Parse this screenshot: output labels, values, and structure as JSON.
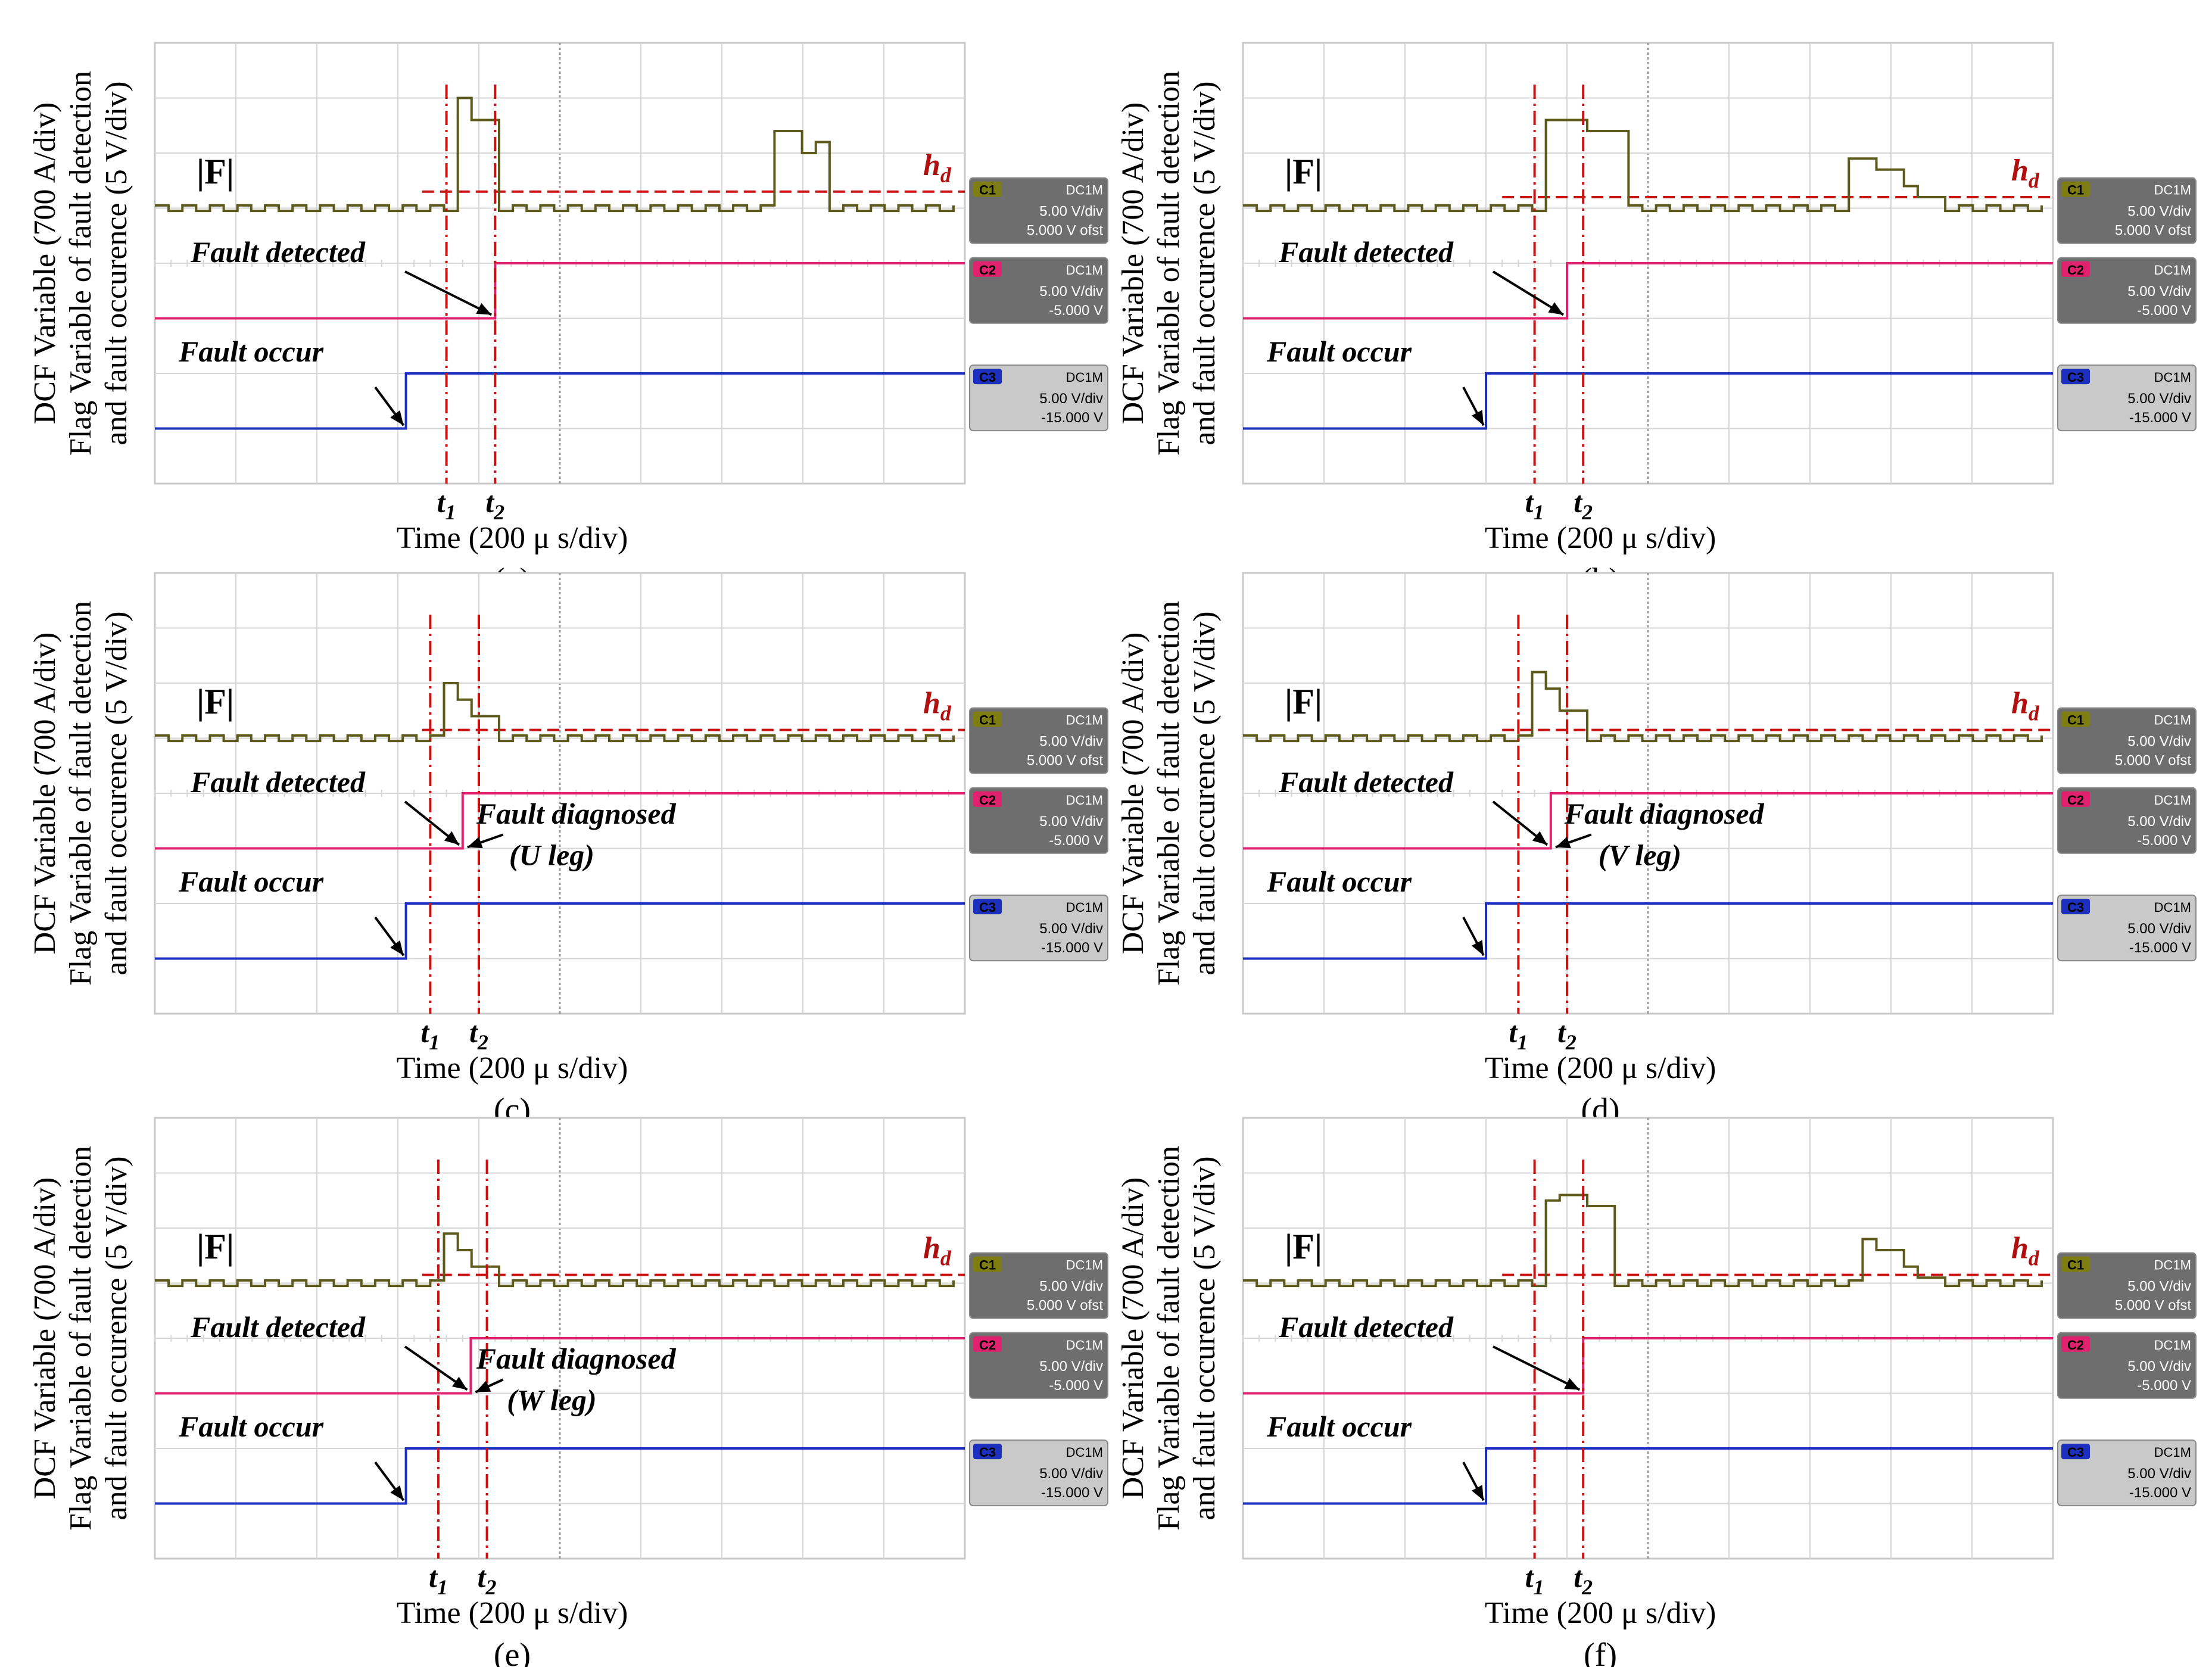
{
  "colors": {
    "background": "#ffffff",
    "plot_bg": "#ffffff",
    "plot_border": "#c8c8c8",
    "grid": "#d6d6d6",
    "grid_center": "#9a9a9a",
    "trace_f": "#5e5a1c",
    "trace_detect": "#e0226e",
    "trace_occur": "#1d2fbe",
    "threshold": "#cc1111",
    "marker": "#cc1111",
    "annotation_red": "#b01010",
    "text": "#000000",
    "badge_c1_tag": "#7d7d12",
    "badge_c2_tag": "#e0226e",
    "badge_c3_tag": "#1d2fbe",
    "badge_dark": "#6e6e6e",
    "badge_light": "#c9c9c9"
  },
  "shared_labels": {
    "ylabel_line1": "DCF Variable (700 A/div)",
    "ylabel_line2": "Flag Variable of fault detection",
    "ylabel_line3": "and fault occurence (5 V/div)",
    "xlabel": "Time (200 μ s/div)",
    "f_label": "|F|",
    "threshold_label_h": "h",
    "threshold_label_d": "d",
    "t1_main": "t",
    "t1_sub": "1",
    "t2_main": "t",
    "t2_sub": "2",
    "fault_detected": "Fault detected",
    "fault_occur": "Fault occur"
  },
  "channel_badges": [
    {
      "tag": "C1",
      "coupling": "DC1M",
      "scale": "5.00 V/div",
      "offset": "5.000 V ofst",
      "style": "dark"
    },
    {
      "tag": "C2",
      "coupling": "DC1M",
      "scale": "5.00 V/div",
      "offset": "-5.000 V",
      "style": "dark"
    },
    {
      "tag": "C3",
      "coupling": "DC1M",
      "scale": "5.00 V/div",
      "offset": "-15.000 V",
      "style": "light"
    }
  ],
  "chart_data": [
    {
      "type": "line",
      "panel": "(a)",
      "x_axis": {
        "label": "Time (200 μ s/div)",
        "divisions": 10,
        "unit": "div"
      },
      "y_axis": {
        "divisions": 8,
        "unit": "div"
      },
      "fault_occur_x": 3.1,
      "t1": 3.6,
      "t2": 4.2,
      "threshold_y": 5.3,
      "series": [
        {
          "name": "|F|",
          "baseline_y": 5.0,
          "pulses": [
            {
              "x0": 3.6,
              "x1": 4.2,
              "levels": [
                7.0,
                6.6
              ]
            },
            {
              "x0": 7.6,
              "x1": 8.3,
              "levels": [
                6.4,
                6.0,
                6.2
              ]
            }
          ]
        },
        {
          "name": "Fault detected flag",
          "low_y": 3.0,
          "high_y": 4.0,
          "step_x": 4.2
        },
        {
          "name": "Fault occurrence flag",
          "low_y": 1.0,
          "high_y": 2.0,
          "step_x": 3.1
        }
      ],
      "annotations": [
        "Fault detected",
        "Fault occur"
      ],
      "caption": "(a)"
    },
    {
      "type": "line",
      "panel": "(b)",
      "x_axis": {
        "label": "Time (200 μ s/div)",
        "divisions": 10,
        "unit": "div"
      },
      "y_axis": {
        "divisions": 8,
        "unit": "div"
      },
      "fault_occur_x": 3.0,
      "t1": 3.6,
      "t2": 4.2,
      "threshold_y": 5.2,
      "series": [
        {
          "name": "|F|",
          "baseline_y": 5.0,
          "pulses": [
            {
              "x0": 3.6,
              "x1": 4.6,
              "levels": [
                6.6,
                6.4
              ]
            },
            {
              "x0": 7.4,
              "x1": 8.6,
              "levels": [
                5.9,
                5.7,
                5.4,
                5.2
              ]
            }
          ]
        },
        {
          "name": "Fault detected flag",
          "low_y": 3.0,
          "high_y": 4.0,
          "step_x": 4.0
        },
        {
          "name": "Fault occurrence flag",
          "low_y": 1.0,
          "high_y": 2.0,
          "step_x": 3.0
        }
      ],
      "annotations": [
        "Fault detected",
        "Fault occur"
      ],
      "caption": "(b)"
    },
    {
      "type": "line",
      "panel": "(c)",
      "x_axis": {
        "label": "Time (200 μ s/div)",
        "divisions": 10,
        "unit": "div"
      },
      "y_axis": {
        "divisions": 8,
        "unit": "div"
      },
      "fault_occur_x": 3.1,
      "t1": 3.4,
      "t2": 4.0,
      "threshold_y": 5.15,
      "series": [
        {
          "name": "|F|",
          "baseline_y": 5.0,
          "pulses": [
            {
              "x0": 3.45,
              "x1": 4.1,
              "levels": [
                6.0,
                5.7,
                5.4
              ]
            }
          ]
        },
        {
          "name": "Fault detected flag",
          "low_y": 3.0,
          "high_y": 4.0,
          "step_x": 3.8
        },
        {
          "name": "Fault occurrence flag",
          "low_y": 1.0,
          "high_y": 2.0,
          "step_x": 3.1
        }
      ],
      "annotations": [
        "Fault detected",
        "Fault diagnosed",
        "(U leg)",
        "Fault occur"
      ],
      "caption": "(c)"
    },
    {
      "type": "line",
      "panel": "(d)",
      "x_axis": {
        "label": "Time (200 μ s/div)",
        "divisions": 10,
        "unit": "div"
      },
      "y_axis": {
        "divisions": 8,
        "unit": "div"
      },
      "fault_occur_x": 3.0,
      "t1": 3.4,
      "t2": 4.0,
      "threshold_y": 5.15,
      "series": [
        {
          "name": "|F|",
          "baseline_y": 5.0,
          "pulses": [
            {
              "x0": 3.45,
              "x1": 4.1,
              "levels": [
                6.2,
                5.9,
                5.5
              ]
            }
          ]
        },
        {
          "name": "Fault detected flag",
          "low_y": 3.0,
          "high_y": 4.0,
          "step_x": 3.8
        },
        {
          "name": "Fault occurrence flag",
          "low_y": 1.0,
          "high_y": 2.0,
          "step_x": 3.0
        }
      ],
      "annotations": [
        "Fault detected",
        "Fault diagnosed",
        "(V leg)",
        "Fault occur"
      ],
      "caption": "(d)"
    },
    {
      "type": "line",
      "panel": "(e)",
      "x_axis": {
        "label": "Time (200 μ s/div)",
        "divisions": 10,
        "unit": "div"
      },
      "y_axis": {
        "divisions": 8,
        "unit": "div"
      },
      "fault_occur_x": 3.1,
      "t1": 3.5,
      "t2": 4.1,
      "threshold_y": 5.15,
      "series": [
        {
          "name": "|F|",
          "baseline_y": 5.0,
          "pulses": [
            {
              "x0": 3.5,
              "x1": 4.1,
              "levels": [
                5.9,
                5.6,
                5.3
              ]
            }
          ]
        },
        {
          "name": "Fault detected flag",
          "low_y": 3.0,
          "high_y": 4.0,
          "step_x": 3.9
        },
        {
          "name": "Fault occurrence flag",
          "low_y": 1.0,
          "high_y": 2.0,
          "step_x": 3.1
        }
      ],
      "annotations": [
        "Fault detected",
        "Fault diagnosed",
        "(W leg)",
        "Fault occur"
      ],
      "caption": "(e)"
    },
    {
      "type": "line",
      "panel": "(f)",
      "x_axis": {
        "label": "Time (200 μ s/div)",
        "divisions": 10,
        "unit": "div"
      },
      "y_axis": {
        "divisions": 8,
        "unit": "div"
      },
      "fault_occur_x": 3.0,
      "t1": 3.6,
      "t2": 4.2,
      "threshold_y": 5.15,
      "series": [
        {
          "name": "|F|",
          "baseline_y": 5.0,
          "pulses": [
            {
              "x0": 3.6,
              "x1": 4.5,
              "levels": [
                6.5,
                6.6,
                6.4
              ]
            },
            {
              "x0": 7.5,
              "x1": 8.6,
              "levels": [
                5.8,
                5.6,
                5.3,
                5.1
              ]
            }
          ]
        },
        {
          "name": "Fault detected flag",
          "low_y": 3.0,
          "high_y": 4.0,
          "step_x": 4.2
        },
        {
          "name": "Fault occurrence flag",
          "low_y": 1.0,
          "high_y": 2.0,
          "step_x": 3.0
        }
      ],
      "annotations": [
        "Fault detected",
        "Fault occur"
      ],
      "caption": "(f)"
    }
  ]
}
